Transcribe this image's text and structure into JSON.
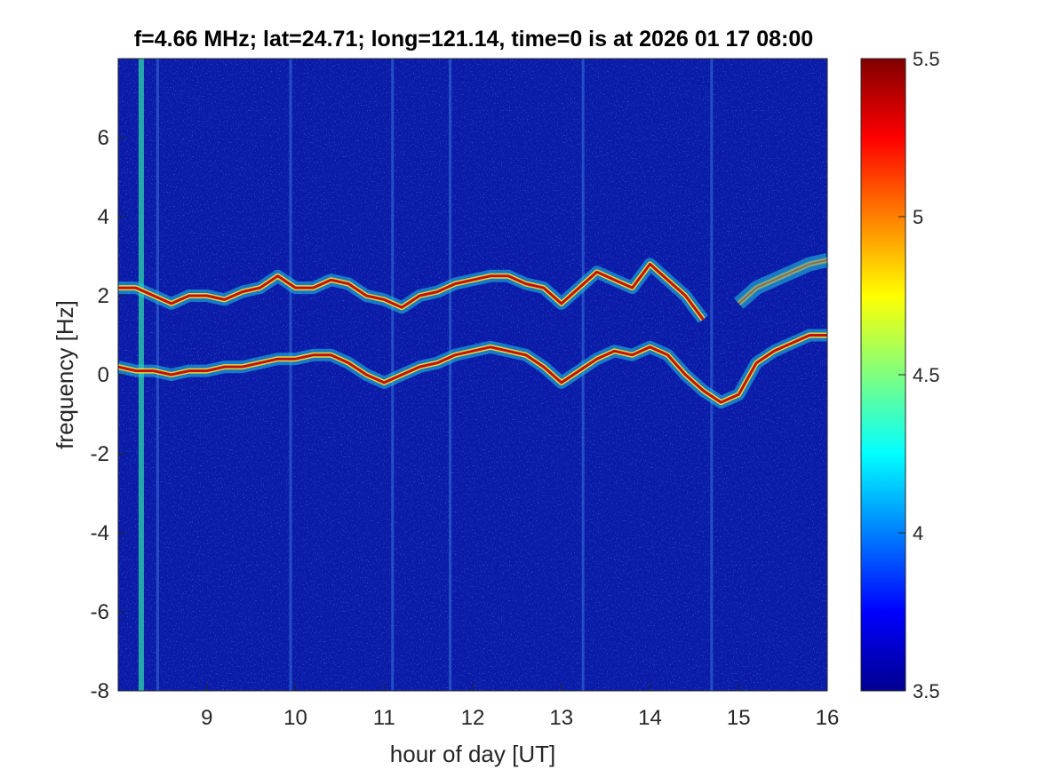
{
  "chart_data": {
    "type": "heatmap",
    "title": "f=4.66 MHz;  lat=24.71; long=121.14, time=0 is at 2026 01 17 08:00",
    "xlabel": "hour of day [UT]",
    "ylabel": "frequency [Hz]",
    "xlim": [
      8.0,
      16.0
    ],
    "ylim": [
      -8,
      8
    ],
    "x_ticks": [
      9,
      10,
      11,
      12,
      13,
      14,
      15,
      16
    ],
    "y_ticks": [
      -8,
      -6,
      -4,
      -2,
      0,
      2,
      4,
      6
    ],
    "colorbar": {
      "colormap": "jet",
      "clim": [
        3.5,
        5.5
      ],
      "ticks": [
        3.5,
        4,
        4.5,
        5,
        5.5
      ]
    },
    "background_color": "#0a1ba8",
    "traces": [
      {
        "name": "",
        "x": [
          8.0,
          8.2,
          8.4,
          8.6,
          8.8,
          9.0,
          9.2,
          9.4,
          9.6,
          9.8,
          10.0,
          10.2,
          10.4,
          10.6,
          10.8,
          11.0,
          11.2,
          11.4,
          11.6,
          11.8,
          12.0,
          12.2,
          12.4,
          12.6,
          12.8,
          13.0,
          13.2,
          13.4,
          13.6,
          13.8,
          14.0,
          14.2,
          14.4,
          14.6
        ],
        "y": [
          2.2,
          2.2,
          2.0,
          1.8,
          2.0,
          2.0,
          1.9,
          2.1,
          2.2,
          2.5,
          2.2,
          2.2,
          2.4,
          2.3,
          2.0,
          1.9,
          1.7,
          2.0,
          2.1,
          2.3,
          2.4,
          2.5,
          2.5,
          2.3,
          2.2,
          1.8,
          2.2,
          2.6,
          2.4,
          2.2,
          2.8,
          2.4,
          2.0,
          1.4
        ]
      },
      {
        "name": "",
        "x": [
          8.0,
          8.2,
          8.4,
          8.6,
          8.8,
          9.0,
          9.2,
          9.4,
          9.6,
          9.8,
          10.0,
          10.2,
          10.4,
          10.6,
          10.8,
          11.0,
          11.2,
          11.4,
          11.6,
          11.8,
          12.0,
          12.2,
          12.4,
          12.6,
          12.8,
          13.0,
          13.2,
          13.4,
          13.6,
          13.8,
          14.0,
          14.2,
          14.4,
          14.6,
          14.8,
          15.0,
          15.2,
          15.4,
          15.6,
          15.8,
          16.0
        ],
        "y": [
          0.2,
          0.1,
          0.1,
          0.0,
          0.1,
          0.1,
          0.2,
          0.2,
          0.3,
          0.4,
          0.4,
          0.5,
          0.5,
          0.3,
          0.0,
          -0.2,
          0.0,
          0.2,
          0.3,
          0.5,
          0.6,
          0.7,
          0.6,
          0.5,
          0.2,
          -0.2,
          0.1,
          0.4,
          0.6,
          0.5,
          0.7,
          0.5,
          0.0,
          -0.4,
          -0.7,
          -0.5,
          0.3,
          0.6,
          0.8,
          1.0,
          1.0
        ]
      },
      {
        "name": "",
        "x": [
          15.0,
          15.2,
          15.4,
          15.6,
          15.8,
          16.0
        ],
        "y": [
          1.8,
          2.2,
          2.4,
          2.6,
          2.8,
          2.9
        ]
      }
    ],
    "vertical_stripes_hours": [
      8.25,
      8.45,
      9.95,
      11.1,
      11.75,
      13.25,
      14.7
    ],
    "grid": false,
    "legend": "none"
  }
}
